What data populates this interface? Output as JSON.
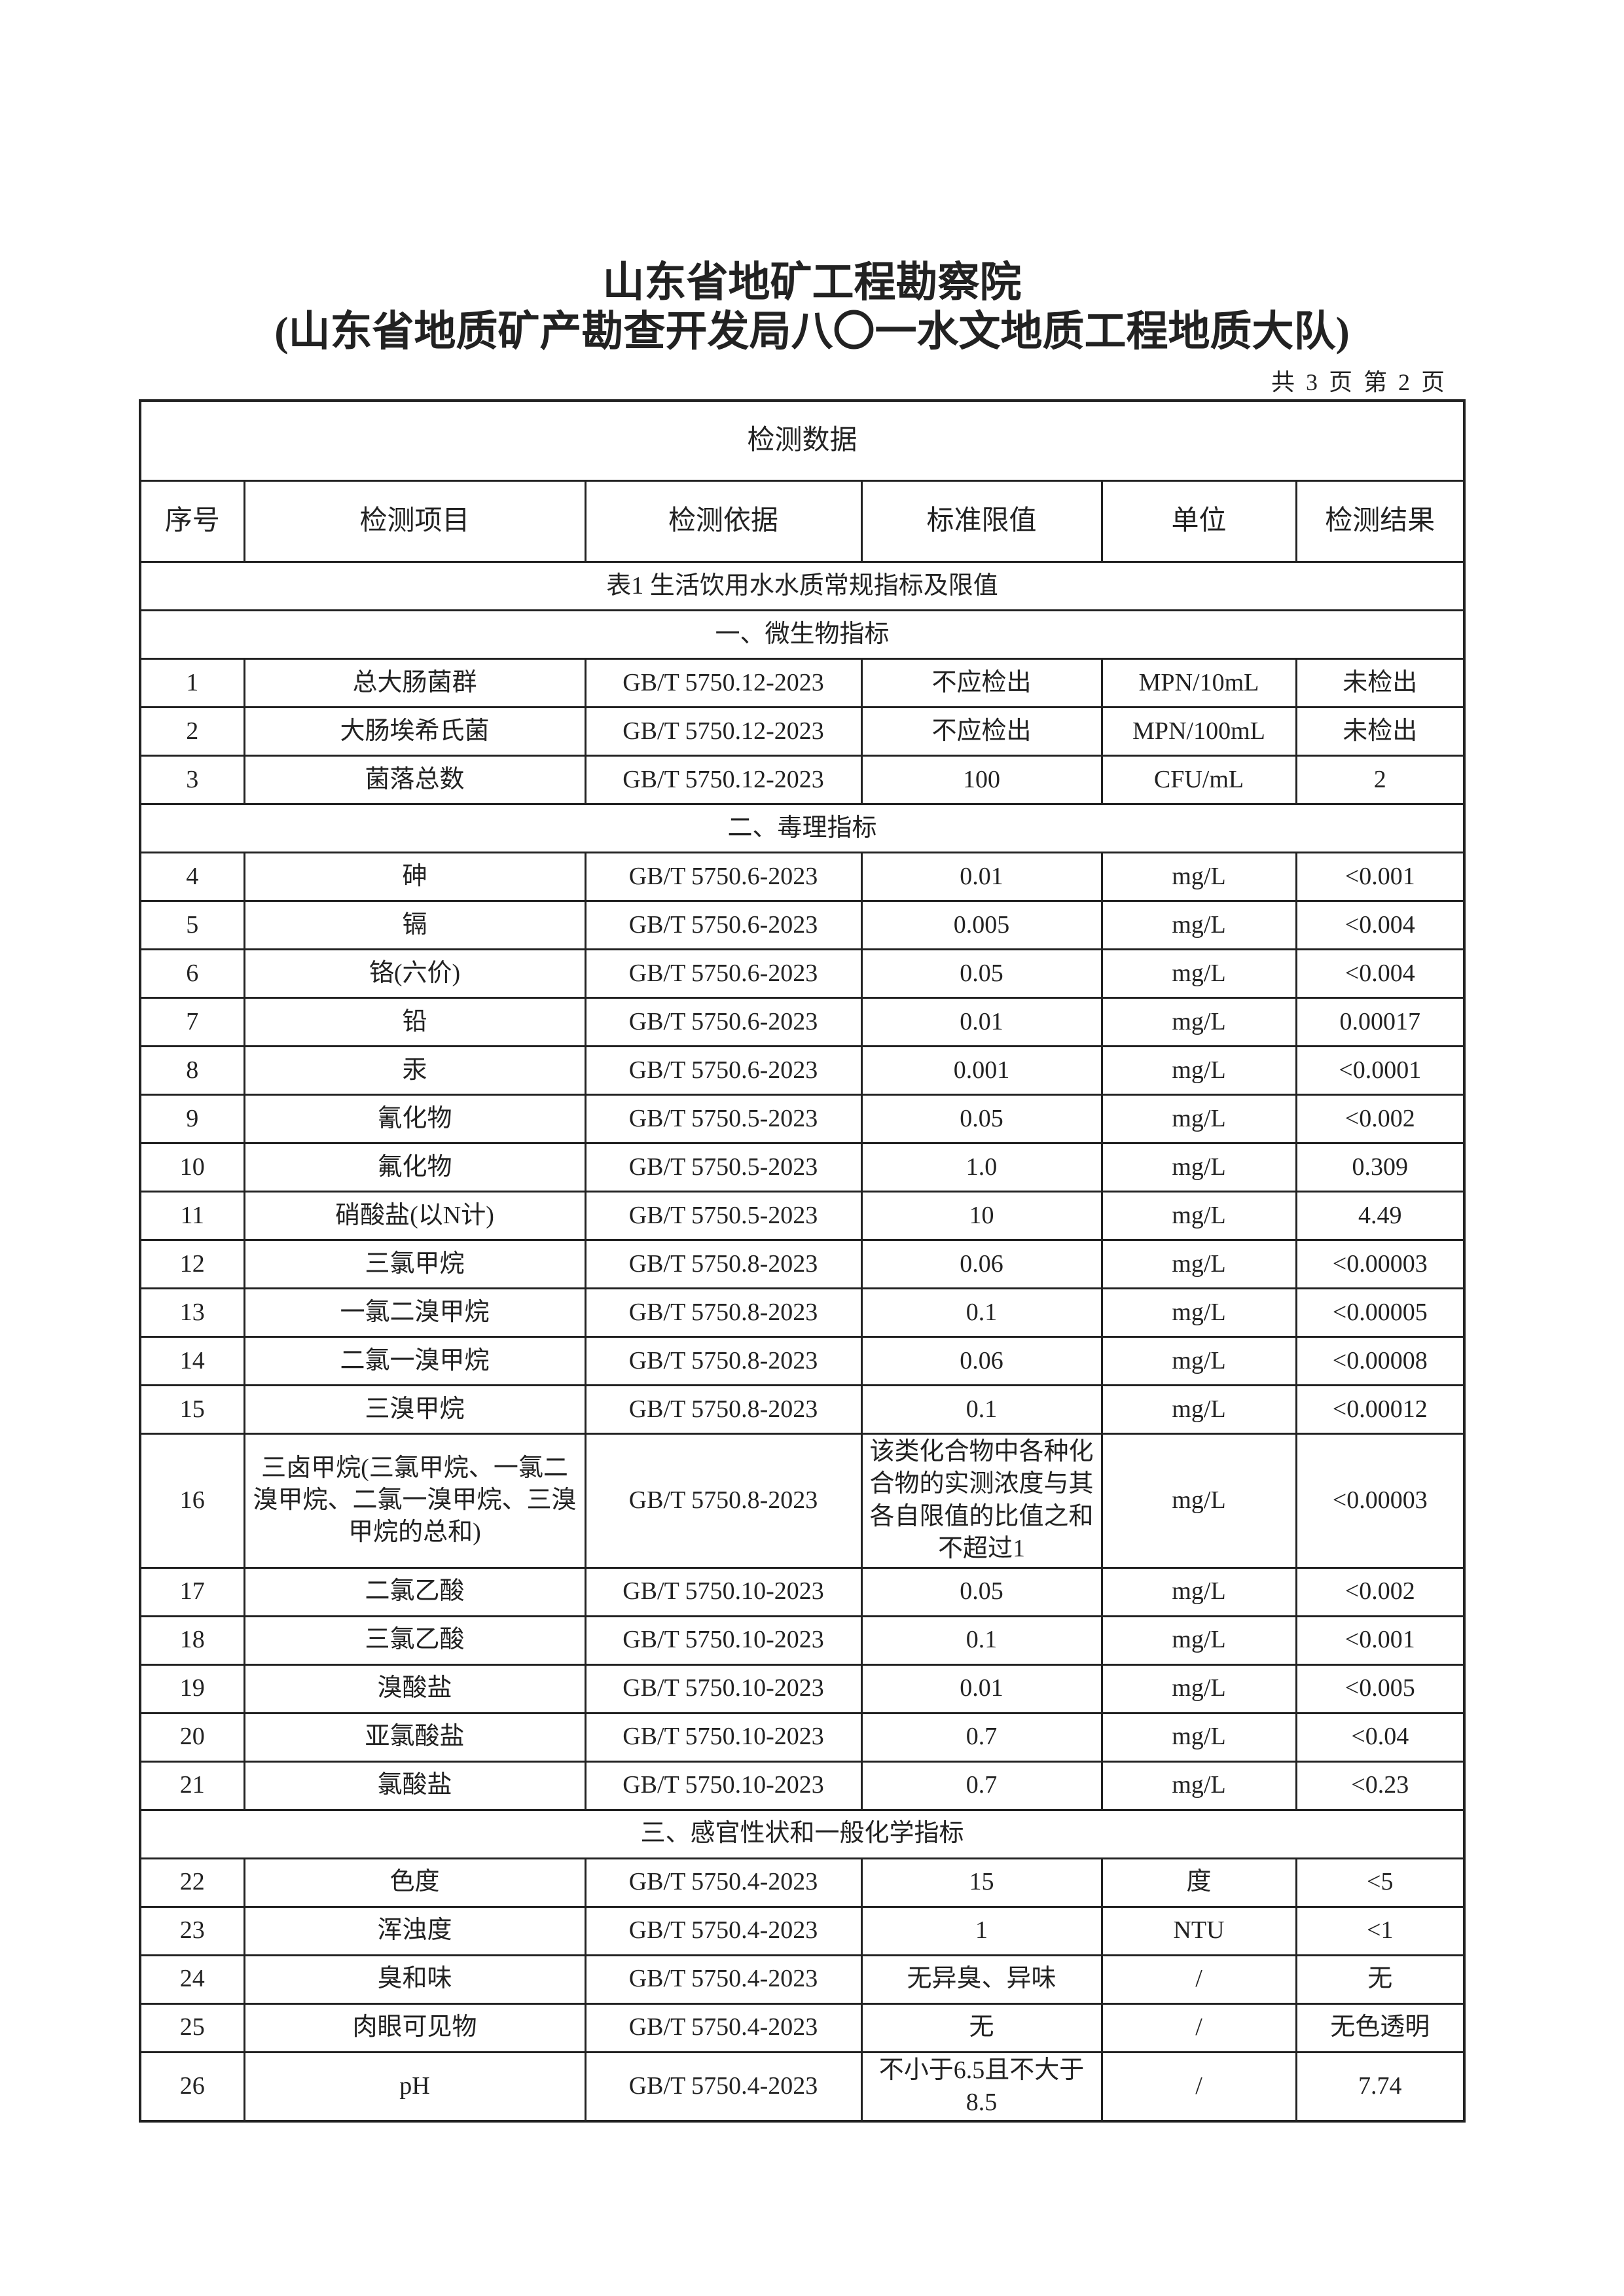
{
  "header": {
    "title_line1": "山东省地矿工程勘察院",
    "title_line2": "(山东省地质矿产勘查开发局八〇一水文地质工程地质大队)",
    "page_info": "共 3 页 第 2 页"
  },
  "table": {
    "title": "检测数据",
    "columns": [
      "序号",
      "检测项目",
      "检测依据",
      "标准限值",
      "单位",
      "检测结果"
    ],
    "caption": "表1 生活饮用水水质常规指标及限值",
    "sections": [
      {
        "title": "一、微生物指标",
        "rows": [
          [
            "1",
            "总大肠菌群",
            "GB/T 5750.12-2023",
            "不应检出",
            "MPN/10mL",
            "未检出"
          ],
          [
            "2",
            "大肠埃希氏菌",
            "GB/T 5750.12-2023",
            "不应检出",
            "MPN/100mL",
            "未检出"
          ],
          [
            "3",
            "菌落总数",
            "GB/T 5750.12-2023",
            "100",
            "CFU/mL",
            "2"
          ]
        ]
      },
      {
        "title": "二、毒理指标",
        "rows": [
          [
            "4",
            "砷",
            "GB/T 5750.6-2023",
            "0.01",
            "mg/L",
            "<0.001"
          ],
          [
            "5",
            "镉",
            "GB/T 5750.6-2023",
            "0.005",
            "mg/L",
            "<0.004"
          ],
          [
            "6",
            "铬(六价)",
            "GB/T 5750.6-2023",
            "0.05",
            "mg/L",
            "<0.004"
          ],
          [
            "7",
            "铅",
            "GB/T 5750.6-2023",
            "0.01",
            "mg/L",
            "0.00017"
          ],
          [
            "8",
            "汞",
            "GB/T 5750.6-2023",
            "0.001",
            "mg/L",
            "<0.0001"
          ],
          [
            "9",
            "氰化物",
            "GB/T 5750.5-2023",
            "0.05",
            "mg/L",
            "<0.002"
          ],
          [
            "10",
            "氟化物",
            "GB/T 5750.5-2023",
            "1.0",
            "mg/L",
            "0.309"
          ],
          [
            "11",
            "硝酸盐(以N计)",
            "GB/T 5750.5-2023",
            "10",
            "mg/L",
            "4.49"
          ],
          [
            "12",
            "三氯甲烷",
            "GB/T 5750.8-2023",
            "0.06",
            "mg/L",
            "<0.00003"
          ],
          [
            "13",
            "一氯二溴甲烷",
            "GB/T 5750.8-2023",
            "0.1",
            "mg/L",
            "<0.00005"
          ],
          [
            "14",
            "二氯一溴甲烷",
            "GB/T 5750.8-2023",
            "0.06",
            "mg/L",
            "<0.00008"
          ],
          [
            "15",
            "三溴甲烷",
            "GB/T 5750.8-2023",
            "0.1",
            "mg/L",
            "<0.00012"
          ],
          [
            "16",
            "三卤甲烷(三氯甲烷、一氯二溴甲烷、二氯一溴甲烷、三溴甲烷的总和)",
            "GB/T 5750.8-2023",
            "该类化合物中各种化合物的实测浓度与其各自限值的比值之和不超过1",
            "mg/L",
            "<0.00003"
          ],
          [
            "17",
            "二氯乙酸",
            "GB/T 5750.10-2023",
            "0.05",
            "mg/L",
            "<0.002"
          ],
          [
            "18",
            "三氯乙酸",
            "GB/T 5750.10-2023",
            "0.1",
            "mg/L",
            "<0.001"
          ],
          [
            "19",
            "溴酸盐",
            "GB/T 5750.10-2023",
            "0.01",
            "mg/L",
            "<0.005"
          ],
          [
            "20",
            "亚氯酸盐",
            "GB/T 5750.10-2023",
            "0.7",
            "mg/L",
            "<0.04"
          ],
          [
            "21",
            "氯酸盐",
            "GB/T 5750.10-2023",
            "0.7",
            "mg/L",
            "<0.23"
          ]
        ]
      },
      {
        "title": "三、感官性状和一般化学指标",
        "rows": [
          [
            "22",
            "色度",
            "GB/T 5750.4-2023",
            "15",
            "度",
            "<5"
          ],
          [
            "23",
            "浑浊度",
            "GB/T 5750.4-2023",
            "1",
            "NTU",
            "<1"
          ],
          [
            "24",
            "臭和味",
            "GB/T 5750.4-2023",
            "无异臭、异味",
            "/",
            "无"
          ],
          [
            "25",
            "肉眼可见物",
            "GB/T 5750.4-2023",
            "无",
            "/",
            "无色透明"
          ],
          [
            "26",
            "pH",
            "GB/T 5750.4-2023",
            "不小于6.5且不大于8.5",
            "/",
            "7.74"
          ]
        ]
      }
    ]
  }
}
